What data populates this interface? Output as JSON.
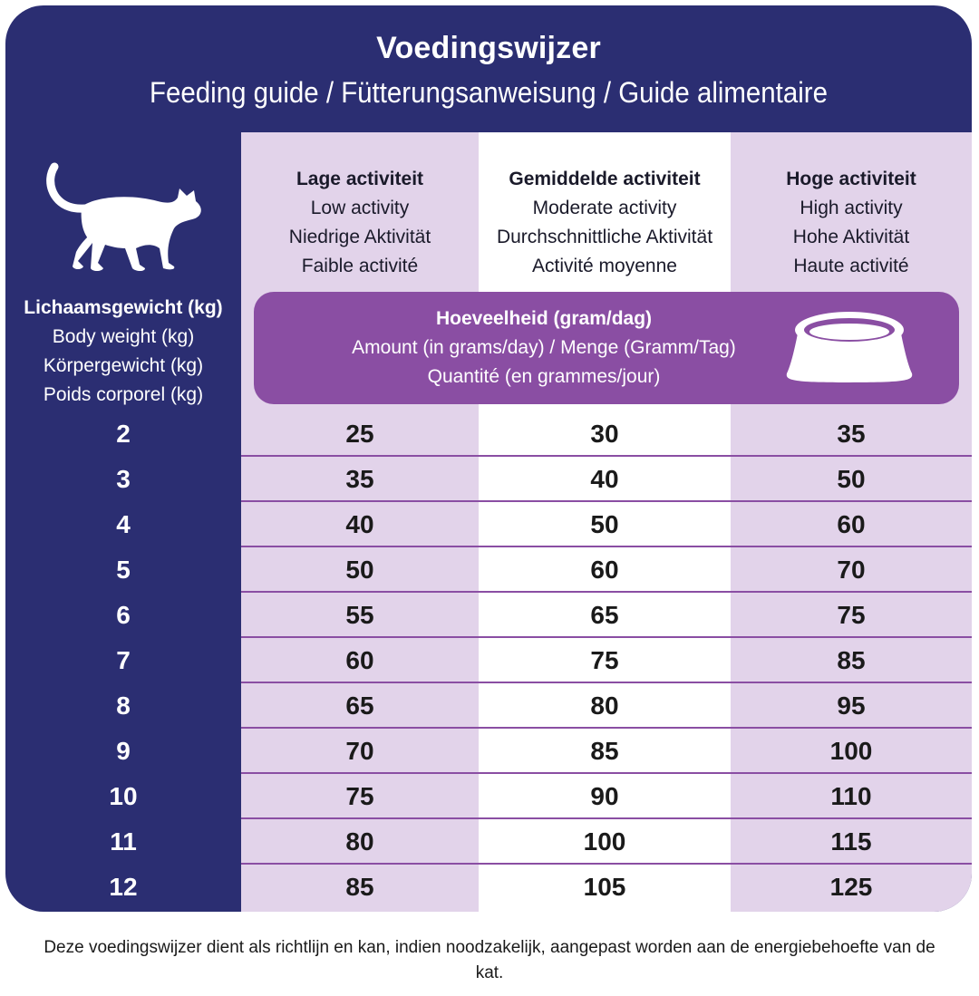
{
  "header": {
    "title": "Voedingswijzer",
    "subtitle": "Feeding guide / Fütterungsanweisung / Guide alimentaire"
  },
  "body_weight": {
    "nl": "Lichaamsgewicht (kg)",
    "en": "Body weight (kg)",
    "de": "Körpergewicht (kg)",
    "fr": "Poids corporel (kg)"
  },
  "activities": [
    {
      "nl": "Lage activiteit",
      "en": "Low activity",
      "de": "Niedrige Aktivität",
      "fr": "Faible activité"
    },
    {
      "nl": "Gemiddelde activiteit",
      "en": "Moderate activity",
      "de": "Durchschnittliche Aktivität",
      "fr": "Activité moyenne"
    },
    {
      "nl": "Hoge activiteit",
      "en": "High activity",
      "de": "Hohe Aktivität",
      "fr": "Haute activité"
    }
  ],
  "amount": {
    "nl": "Hoeveelheid (gram/dag)",
    "en_de": "Amount (in grams/day) / Menge (Gramm/Tag)",
    "fr": "Quantité (en grammes/jour)"
  },
  "rows": [
    {
      "weight": "2",
      "low": "25",
      "moderate": "30",
      "high": "35"
    },
    {
      "weight": "3",
      "low": "35",
      "moderate": "40",
      "high": "50"
    },
    {
      "weight": "4",
      "low": "40",
      "moderate": "50",
      "high": "60"
    },
    {
      "weight": "5",
      "low": "50",
      "moderate": "60",
      "high": "70"
    },
    {
      "weight": "6",
      "low": "55",
      "moderate": "65",
      "high": "75"
    },
    {
      "weight": "7",
      "low": "60",
      "moderate": "75",
      "high": "85"
    },
    {
      "weight": "8",
      "low": "65",
      "moderate": "80",
      "high": "95"
    },
    {
      "weight": "9",
      "low": "70",
      "moderate": "85",
      "high": "100"
    },
    {
      "weight": "10",
      "low": "75",
      "moderate": "90",
      "high": "110"
    },
    {
      "weight": "11",
      "low": "80",
      "moderate": "100",
      "high": "115"
    },
    {
      "weight": "12",
      "low": "85",
      "moderate": "105",
      "high": "125"
    }
  ],
  "footnote": "Deze voedingswijzer dient als richtlijn en kan, indien noodzakelijk, aangepast worden aan de energiebehoefte van de kat.",
  "icons": {
    "cat": "cat-icon",
    "bowl": "bowl-icon"
  },
  "colors": {
    "navy": "#2b2e72",
    "lilac": "#e2d3ea",
    "purple": "#8a4ea3"
  }
}
